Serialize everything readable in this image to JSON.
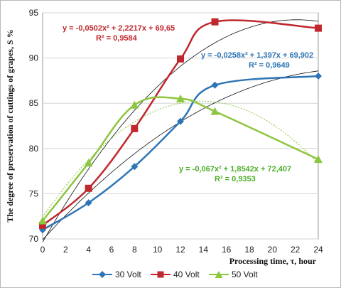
{
  "chart_data": {
    "type": "line",
    "xlabel": "Processing time, τ, hour",
    "ylabel": "The degree of preservation of cuttings of grapes, S %",
    "xlim": [
      0,
      24
    ],
    "ylim": [
      70,
      95
    ],
    "xticks": [
      0,
      2,
      4,
      6,
      8,
      10,
      12,
      14,
      16,
      18,
      20,
      22,
      24
    ],
    "yticks": [
      70,
      75,
      80,
      85,
      90,
      95
    ],
    "legend_position": "bottom",
    "series": [
      {
        "name": "30 Volt",
        "color": "#2e75b6",
        "marker": "diamond",
        "x": [
          0,
          4,
          8,
          12,
          15,
          24
        ],
        "y": [
          71.0,
          74.0,
          78.0,
          83.0,
          87.0,
          88.0
        ],
        "trend": {
          "a": -0.0258,
          "b": 1.397,
          "c": 69.902,
          "equation": "y = -0,0258x² + 1,397x + 69,902",
          "r2": "R² = 0,9649"
        }
      },
      {
        "name": "40 Volt",
        "color": "#c0282d",
        "marker": "square",
        "x": [
          0,
          4,
          8,
          12,
          15,
          24
        ],
        "y": [
          71.5,
          75.6,
          82.2,
          89.9,
          94.0,
          93.3
        ],
        "trend": {
          "a": -0.0502,
          "b": 2.2217,
          "c": 69.65,
          "equation": "y = -0,0502x² + 2,2217x + 69,65",
          "r2": "R² = 0,9584"
        }
      },
      {
        "name": "50 Volt",
        "color": "#8dc63f",
        "marker": "triangle",
        "x": [
          0,
          4,
          8,
          12,
          15,
          24
        ],
        "y": [
          72.0,
          78.4,
          84.8,
          85.5,
          84.1,
          78.8
        ],
        "trend": {
          "a": -0.067,
          "b": 1.8542,
          "c": 72.407,
          "equation": "y = -0,067x² + 1,8542x + 72,407",
          "r2": "R² = 0,9353"
        }
      }
    ]
  }
}
